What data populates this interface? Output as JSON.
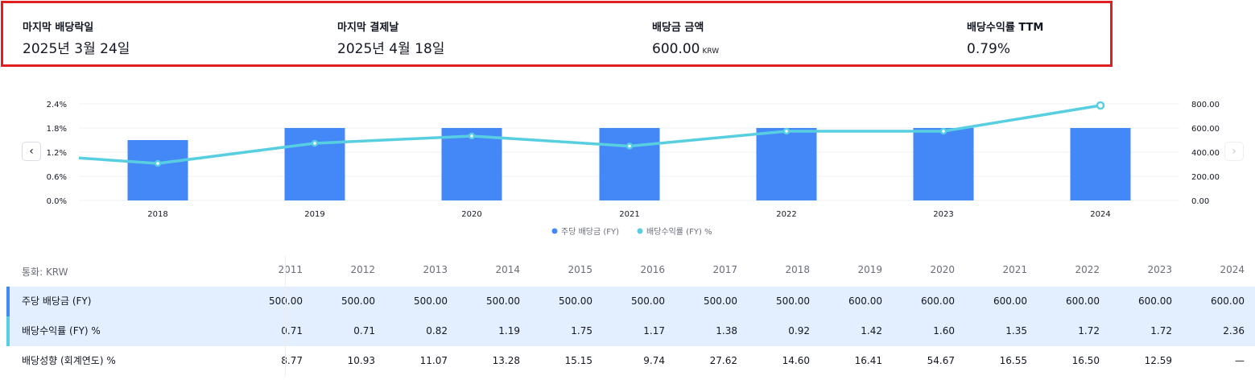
{
  "summary": {
    "items": [
      {
        "label": "마지막 배당락일",
        "value": "2025년 3월 24일",
        "unit": ""
      },
      {
        "label": "마지막 결제날",
        "value": "2025년 4월 18일",
        "unit": ""
      },
      {
        "label": "배당금 금액",
        "value": "600.00",
        "unit": "KRW"
      },
      {
        "label": "배당수익률 TTM",
        "value": "0.79%",
        "unit": ""
      }
    ]
  },
  "nav": {
    "prev_icon": "‹",
    "next_icon": "›"
  },
  "chart_data": {
    "type": "bar",
    "categories": [
      "2018",
      "2019",
      "2020",
      "2021",
      "2022",
      "2023",
      "2024"
    ],
    "series": [
      {
        "name": "주당 배당금 (FY)",
        "type": "bar",
        "axis": "right",
        "color": "#4487f7",
        "values": [
          500.0,
          600.0,
          600.0,
          600.0,
          600.0,
          600.0,
          600.0
        ]
      },
      {
        "name": "배당수익률 (FY) %",
        "type": "line",
        "axis": "left",
        "color": "#58cfe0",
        "values": [
          0.92,
          1.42,
          1.6,
          1.35,
          1.72,
          1.72,
          2.36
        ]
      }
    ],
    "left_axis": {
      "ticks": [
        "0.0%",
        "0.6%",
        "1.2%",
        "1.8%",
        "2.4%"
      ],
      "range": [
        0,
        2.4
      ]
    },
    "right_axis": {
      "ticks": [
        "0.00",
        "200.00",
        "400.00",
        "600.00",
        "800.00"
      ],
      "range": [
        0,
        800
      ]
    },
    "legend_position": "bottom-center",
    "grid": true
  },
  "table": {
    "currency_label": "통화: KRW",
    "years": [
      "2011",
      "2012",
      "2013",
      "2014",
      "2015",
      "2016",
      "2017",
      "2018",
      "2019",
      "2020",
      "2021",
      "2022",
      "2023",
      "2024"
    ],
    "rows": [
      {
        "label": "주당 배당금 (FY)",
        "accent": "#4487f7",
        "highlight": true,
        "values": [
          "500.00",
          "500.00",
          "500.00",
          "500.00",
          "500.00",
          "500.00",
          "500.00",
          "500.00",
          "600.00",
          "600.00",
          "600.00",
          "600.00",
          "600.00",
          "600.00"
        ]
      },
      {
        "label": "배당수익률 (FY) %",
        "accent": "#58cfe0",
        "highlight": true,
        "values": [
          "0.71",
          "0.71",
          "0.82",
          "1.19",
          "1.75",
          "1.17",
          "1.38",
          "0.92",
          "1.42",
          "1.60",
          "1.35",
          "1.72",
          "1.72",
          "2.36"
        ]
      },
      {
        "label": "배당성향 (회계연도) %",
        "accent": "",
        "highlight": false,
        "values": [
          "8.77",
          "10.93",
          "11.07",
          "13.28",
          "15.15",
          "9.74",
          "27.62",
          "14.60",
          "16.41",
          "54.67",
          "16.55",
          "16.50",
          "12.59",
          "—"
        ]
      }
    ]
  }
}
